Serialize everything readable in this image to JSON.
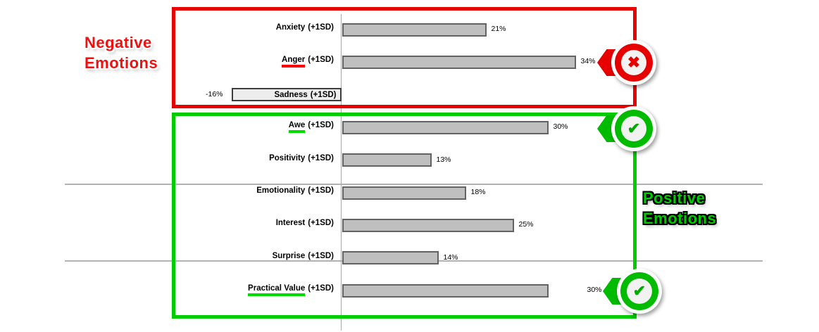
{
  "chart_data": {
    "type": "bar",
    "orientation": "horizontal",
    "value_unit": "%",
    "title": "",
    "xlabel": "",
    "ylabel": "",
    "xlim": [
      -20,
      40
    ],
    "grid": "two horizontal separator lines, vertical zero baseline",
    "legend": false,
    "bar_color": "#bfbfbf",
    "rows": [
      {
        "name": "Anxiety",
        "suffix": "(+1SD)",
        "value": 21,
        "display": "21%"
      },
      {
        "name": "Anger",
        "suffix": "(+1SD)",
        "value": 34,
        "display": "34%",
        "underline": "#ff0000",
        "badge": "reject"
      },
      {
        "name": "Sadness",
        "suffix": "(+1SD)",
        "value": -16,
        "display": "-16%",
        "label_inside": true
      },
      {
        "name": "Awe",
        "suffix": "(+1SD)",
        "value": 30,
        "display": "30%",
        "underline": "#00dd00",
        "badge": "approve"
      },
      {
        "name": "Positivity",
        "suffix": "(+1SD)",
        "value": 13,
        "display": "13%"
      },
      {
        "name": "Emotionality",
        "suffix": "(+1SD)",
        "value": 18,
        "display": "18%"
      },
      {
        "name": "Interest",
        "suffix": "(+1SD)",
        "value": 25,
        "display": "25%"
      },
      {
        "name": "Surprise",
        "suffix": "(+1SD)",
        "value": 14,
        "display": "14%"
      },
      {
        "name": "Practical Value",
        "suffix": "(+1SD)",
        "value": 30,
        "display": "30%",
        "underline": "#00dd00",
        "badge": "approve",
        "value_gap": 56
      }
    ]
  },
  "groups": {
    "negative": {
      "title_lines": [
        "Negative",
        "Emotions"
      ],
      "color": "#ee1111",
      "members": [
        "Anxiety",
        "Anger",
        "Sadness"
      ]
    },
    "positive": {
      "title_lines": [
        "Positive",
        "Emotions"
      ],
      "color": "#00cc00",
      "members": [
        "Awe",
        "Positivity",
        "Emotionality",
        "Interest",
        "Surprise",
        "Practical Value"
      ]
    }
  },
  "icons": {
    "reject_x": "✖",
    "approve_check": "✔"
  }
}
